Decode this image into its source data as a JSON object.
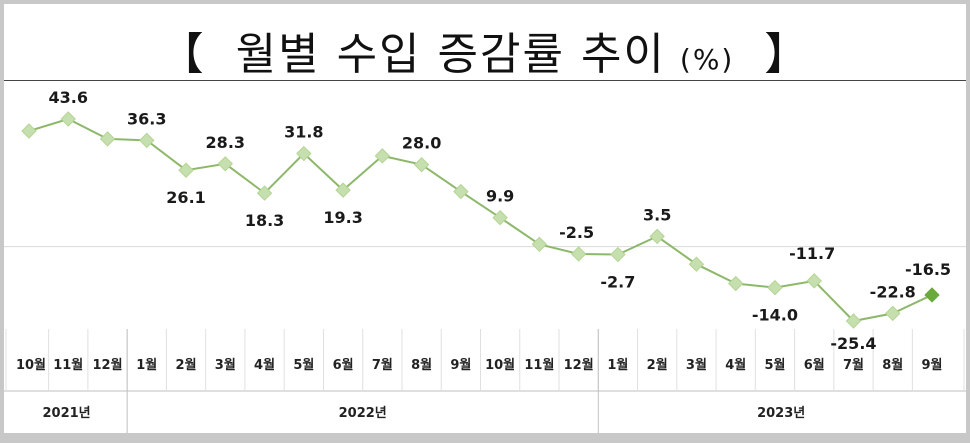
{
  "title": {
    "open": "【",
    "main": "월별 수입 증감률 추이",
    "unit": "(%)",
    "close": "】"
  },
  "chart_data": {
    "type": "line",
    "categories": [
      "10월",
      "11월",
      "12월",
      "1월",
      "2월",
      "3월",
      "4월",
      "5월",
      "6월",
      "7월",
      "8월",
      "9월",
      "10월",
      "11월",
      "12월",
      "1월",
      "2월",
      "3월",
      "4월",
      "5월",
      "6월",
      "7월",
      "8월",
      "9월"
    ],
    "values": [
      null,
      43.6,
      null,
      36.3,
      26.1,
      28.3,
      18.3,
      31.8,
      19.3,
      null,
      28.0,
      null,
      9.9,
      null,
      -2.5,
      -2.7,
      3.5,
      null,
      null,
      -14.0,
      -11.7,
      -25.4,
      -22.8,
      -16.5
    ],
    "value_labels": [
      "",
      "43.6",
      "",
      "36.3",
      "26.1",
      "28.3",
      "18.3",
      "31.8",
      "19.3",
      "",
      "28.0",
      "",
      "9.9",
      "",
      "-2.5",
      "-2.7",
      "3.5",
      "",
      "",
      "-14.0",
      "-11.7",
      "-25.4",
      "-22.8",
      "-16.5"
    ],
    "years": [
      {
        "label": "2021년",
        "start": 0,
        "end": 2
      },
      {
        "label": "2022년",
        "start": 3,
        "end": 14
      },
      {
        "label": "2023년",
        "start": 15,
        "end": 23
      }
    ],
    "zero_line": true,
    "highlight_last": true,
    "colors": {
      "line": "#8db86a",
      "marker": "#c6dfae",
      "marker_last": "#6aaa3c",
      "label": "#1a1a1a"
    }
  }
}
